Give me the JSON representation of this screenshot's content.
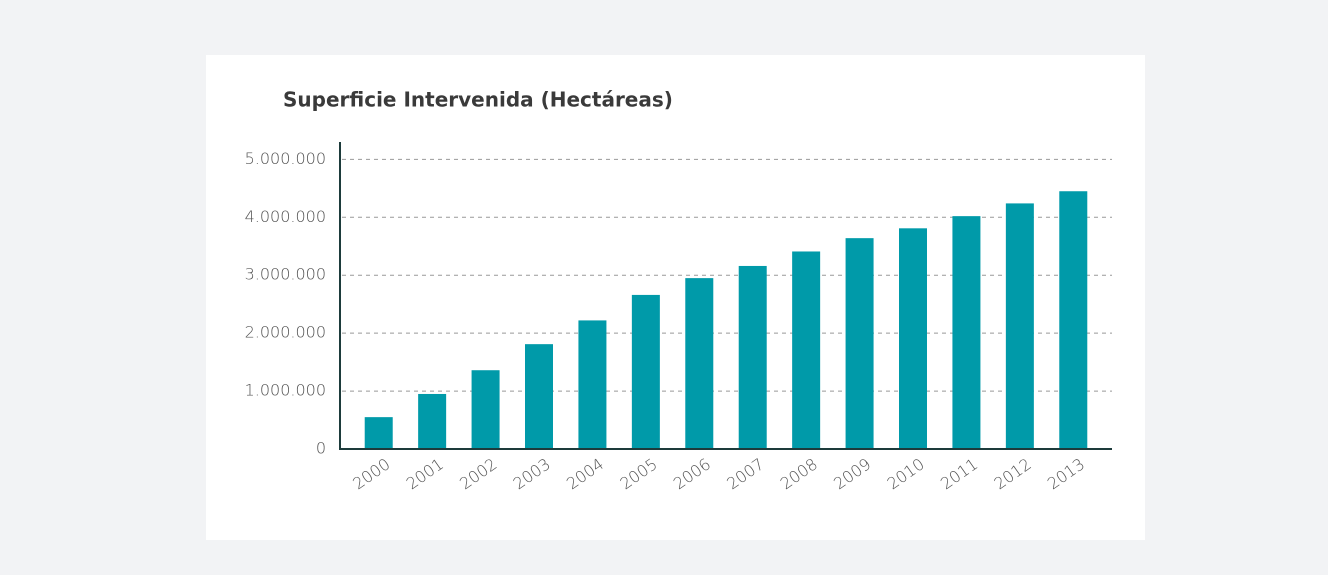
{
  "chart_data": {
    "type": "bar",
    "title": "Superficie Intervenida (Hectáreas)",
    "categories": [
      "2000",
      "2001",
      "2002",
      "2003",
      "2004",
      "2005",
      "2006",
      "2007",
      "2008",
      "2009",
      "2010",
      "2011",
      "2012",
      "2013"
    ],
    "values": [
      550000,
      950000,
      1360000,
      1810000,
      2220000,
      2660000,
      2950000,
      3160000,
      3410000,
      3640000,
      3810000,
      4020000,
      4240000,
      4450000
    ],
    "color": "#009aa9",
    "ylim": [
      0,
      5300000
    ],
    "yticks": [
      0,
      {
        "value": 1000000,
        "label": "1.000.000"
      },
      {
        "value": 2000000,
        "label": "2.000.000"
      },
      {
        "value": 3000000,
        "label": "3.000.000"
      },
      {
        "value": 4000000,
        "label": "4.000.000"
      },
      {
        "value": 5000000,
        "label": "5.000.000"
      }
    ],
    "grid": true
  }
}
